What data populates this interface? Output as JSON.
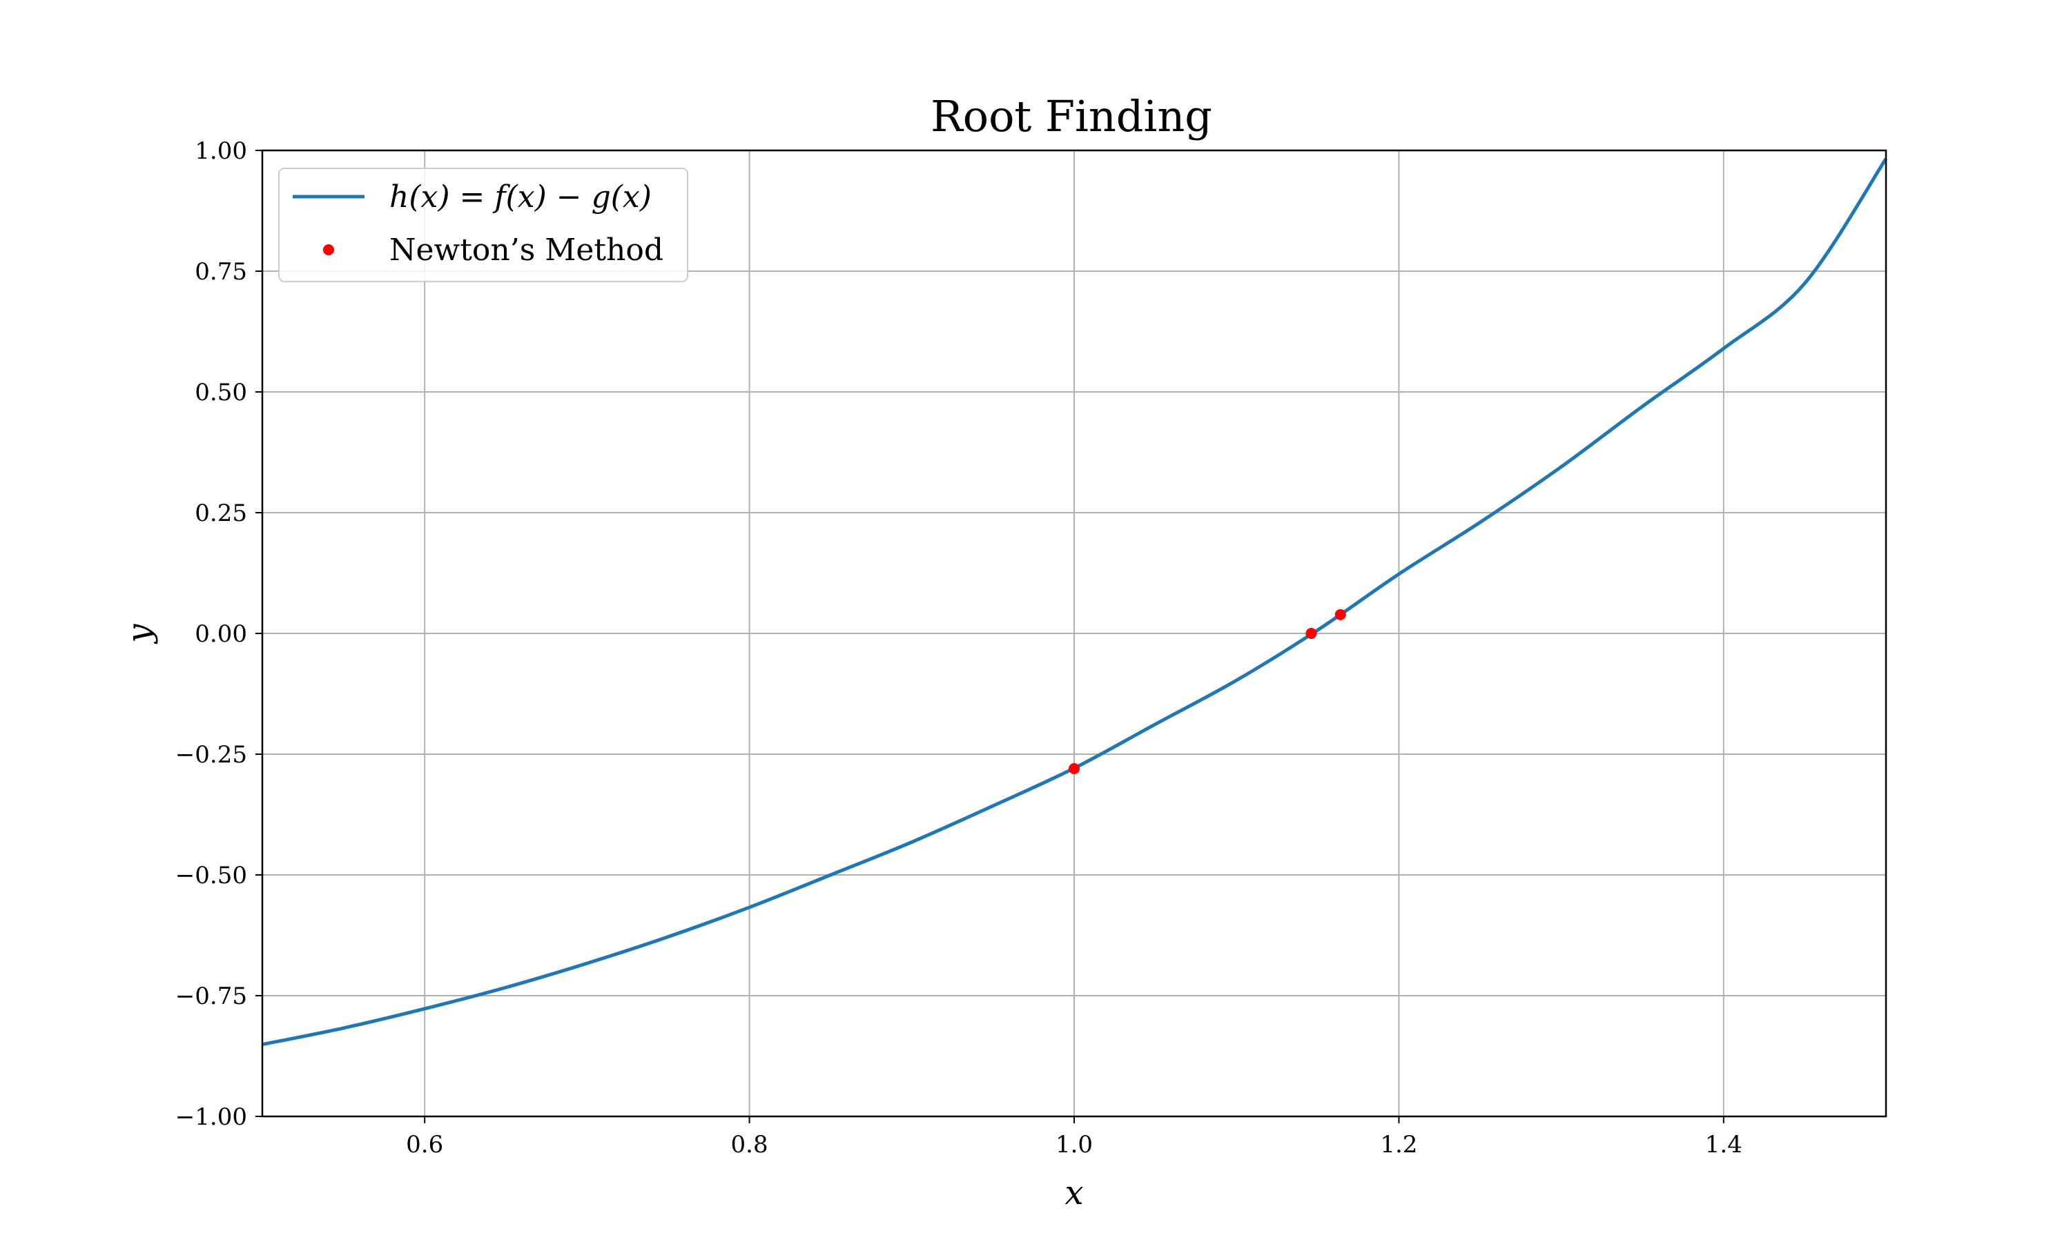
{
  "chart_data": {
    "type": "line",
    "title": "Root Finding",
    "xlabel": "x",
    "ylabel": "y",
    "xlim": [
      0.5,
      1.5
    ],
    "ylim": [
      -1.0,
      1.0
    ],
    "grid": true,
    "legend_position": "top-left",
    "x_ticks": [
      0.6,
      0.8,
      1.0,
      1.2,
      1.4
    ],
    "x_tick_labels": [
      "0.6",
      "0.8",
      "1.0",
      "1.2",
      "1.4"
    ],
    "y_ticks": [
      -1.0,
      -0.75,
      -0.5,
      -0.25,
      0.0,
      0.25,
      0.5,
      0.75,
      1.0
    ],
    "y_tick_labels": [
      "−1.00",
      "−0.75",
      "−0.50",
      "−0.25",
      "0.00",
      "0.25",
      "0.50",
      "0.75",
      "1.00"
    ],
    "series": [
      {
        "name": "h(x) = f(x) − g(x)",
        "kind": "line",
        "color": "#1f77b4",
        "x": [
          0.5,
          0.55,
          0.6,
          0.65,
          0.7,
          0.75,
          0.8,
          0.85,
          0.9,
          0.95,
          1.0,
          1.05,
          1.1,
          1.15,
          1.2,
          1.25,
          1.3,
          1.35,
          1.4,
          1.45,
          1.5
        ],
        "y": [
          -0.851,
          -0.817,
          -0.777,
          -0.733,
          -0.683,
          -0.628,
          -0.567,
          -0.5,
          -0.432,
          -0.357,
          -0.279,
          -0.188,
          -0.097,
          0.007,
          0.123,
          0.23,
          0.345,
          0.47,
          0.59,
          0.725,
          0.983
        ]
      },
      {
        "name": "Newton’s Method",
        "kind": "scatter",
        "color": "#ff0000",
        "x": [
          1.0,
          1.146,
          1.164
        ],
        "y": [
          -0.28,
          0.0,
          0.039
        ]
      }
    ]
  }
}
